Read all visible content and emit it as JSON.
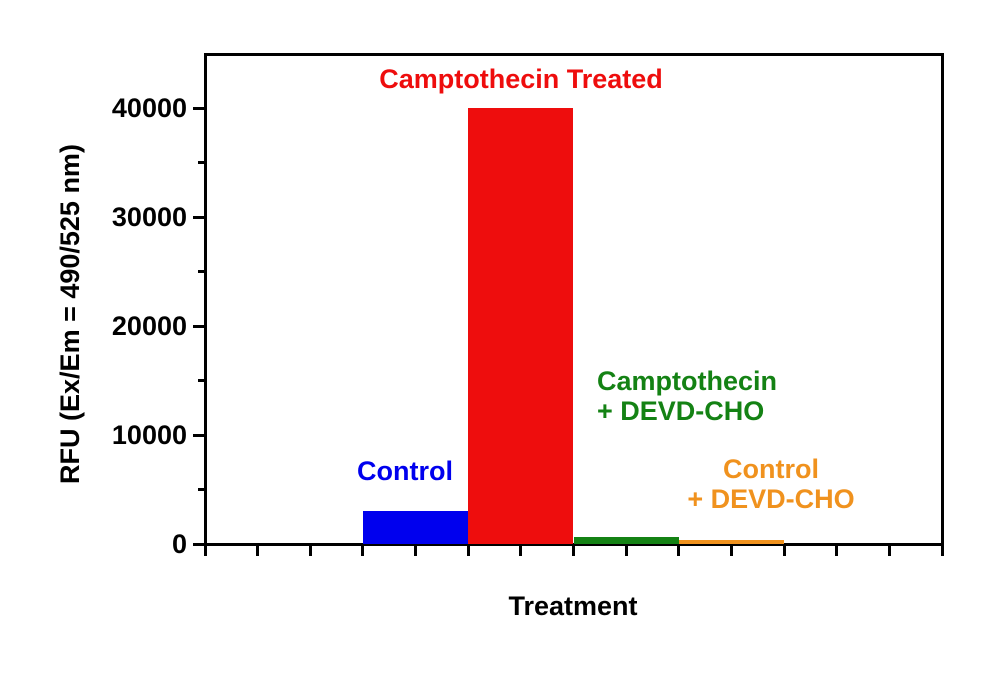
{
  "chart_data": {
    "type": "bar",
    "title": "",
    "xlabel": "Treatment",
    "ylabel": "RFU (Ex/Em = 490/525 nm)",
    "ylim": [
      0,
      45000
    ],
    "y_major_ticks": [
      0,
      10000,
      20000,
      30000,
      40000
    ],
    "y_minor_ticks": [
      5000,
      15000,
      25000,
      35000
    ],
    "x_tick_count": 15,
    "grid": false,
    "legend_position": "none",
    "categories": [
      "Control",
      "Camptothecin Treated",
      "Camptothecin + DEVD-CHO",
      "Control + DEVD-CHO"
    ],
    "values": [
      3000,
      40000,
      600,
      400
    ],
    "bar_colors": [
      "#0000ee",
      "#ee0d0d",
      "#148214",
      "#f0921e"
    ],
    "frame_color": "#000000",
    "annotations": [
      {
        "lines": [
          "Control"
        ],
        "color": "#0000ee",
        "align": "center"
      },
      {
        "lines": [
          "Camptothecin Treated"
        ],
        "color": "#ee0d0d",
        "align": "center"
      },
      {
        "lines": [
          "Camptothecin",
          "+ DEVD-CHO"
        ],
        "color": "#148214",
        "align": "left"
      },
      {
        "lines": [
          "Control",
          "+ DEVD-CHO"
        ],
        "color": "#f0921e",
        "align": "center"
      }
    ]
  }
}
